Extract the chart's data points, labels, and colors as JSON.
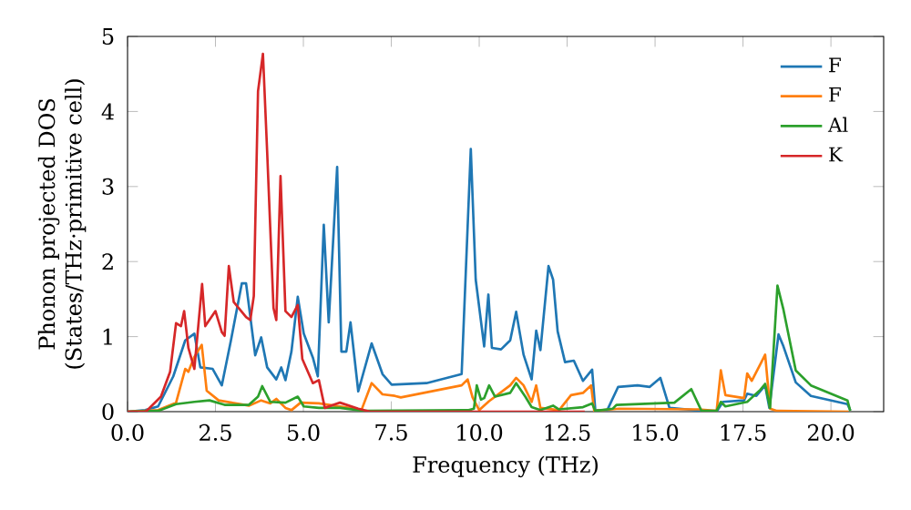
{
  "chart_data": {
    "type": "line",
    "xlabel": "Frequency (THz)",
    "ylabel": "Phonon projected DOS\n(States/THz·primitive cell)",
    "xlim": [
      0,
      21.5
    ],
    "ylim": [
      0,
      5
    ],
    "xticks": [
      {
        "value": 0,
        "label": "0.0"
      },
      {
        "value": 2.5,
        "label": "2.5"
      },
      {
        "value": 5,
        "label": "5.0"
      },
      {
        "value": 7.5,
        "label": "7.5"
      },
      {
        "value": 10,
        "label": "10.0"
      },
      {
        "value": 12.5,
        "label": "12.5"
      },
      {
        "value": 15,
        "label": "15.0"
      },
      {
        "value": 17.5,
        "label": "17.5"
      },
      {
        "value": 20,
        "label": "20.0"
      }
    ],
    "yticks": [
      0,
      1,
      2,
      3,
      4,
      5
    ],
    "legend": "top right",
    "marker": "none",
    "line_style": "solid",
    "grid": false,
    "series": [
      {
        "name": "F",
        "color": "#1f77b4",
        "x": [
          0,
          0.5,
          0.87,
          1.3,
          1.64,
          1.9,
          2.07,
          2.42,
          2.68,
          2.94,
          3.25,
          3.37,
          3.63,
          3.8,
          3.97,
          4.23,
          4.37,
          4.49,
          4.66,
          4.84,
          5.01,
          5.27,
          5.41,
          5.58,
          5.72,
          5.96,
          6.08,
          6.22,
          6.34,
          6.56,
          6.94,
          7.25,
          7.51,
          8.5,
          9.5,
          9.76,
          9.9,
          10.14,
          10.26,
          10.36,
          10.62,
          10.88,
          11.05,
          11.26,
          11.49,
          11.62,
          11.74,
          11.97,
          12.1,
          12.23,
          12.44,
          12.69,
          12.95,
          13.21,
          13.3,
          13.64,
          13.95,
          14.5,
          14.85,
          15.15,
          15.41,
          15.9,
          16.32,
          16.75,
          16.93,
          17.53,
          17.62,
          17.88,
          18.13,
          18.25,
          18.51,
          18.65,
          19.0,
          19.43,
          20.47,
          20.55
        ],
        "values": [
          0,
          0.02,
          0.07,
          0.47,
          0.95,
          1.04,
          0.59,
          0.57,
          0.35,
          0.95,
          1.71,
          1.71,
          0.75,
          0.99,
          0.59,
          0.43,
          0.59,
          0.42,
          0.8,
          1.53,
          1.04,
          0.72,
          0.47,
          2.49,
          1.19,
          3.26,
          0.8,
          0.8,
          1.19,
          0.27,
          0.91,
          0.5,
          0.36,
          0.38,
          0.5,
          3.5,
          1.76,
          0.87,
          1.56,
          0.85,
          0.83,
          0.95,
          1.33,
          0.76,
          0.43,
          1.08,
          0.82,
          1.94,
          1.76,
          1.07,
          0.66,
          0.68,
          0.41,
          0.56,
          0.02,
          0.02,
          0.33,
          0.35,
          0.33,
          0.45,
          0.05,
          0.03,
          0.01,
          0,
          0.13,
          0.15,
          0.24,
          0.21,
          0.35,
          0.05,
          1.03,
          0.87,
          0.39,
          0.21,
          0.1,
          0.02
        ]
      },
      {
        "name": "F",
        "color": "#ff7f0e",
        "x": [
          0,
          0.87,
          1.38,
          1.64,
          1.73,
          1.9,
          2.11,
          2.25,
          2.59,
          3.45,
          3.8,
          4.06,
          4.23,
          4.49,
          4.66,
          4.92,
          5.44,
          6.3,
          6.65,
          6.94,
          7.25,
          7.6,
          7.77,
          9.5,
          9.67,
          9.81,
          10.0,
          10.28,
          10.88,
          11.05,
          11.26,
          11.49,
          11.62,
          11.74,
          12.27,
          12.61,
          12.95,
          13.18,
          13.27,
          13.98,
          16.23,
          16.75,
          16.87,
          17.0,
          17.53,
          17.62,
          17.75,
          17.99,
          18.13,
          18.27,
          18.47,
          20.5
        ],
        "values": [
          0,
          0.02,
          0.12,
          0.57,
          0.53,
          0.73,
          0.89,
          0.28,
          0.15,
          0.08,
          0.15,
          0.11,
          0.17,
          0.05,
          0.02,
          0.12,
          0.11,
          0.05,
          0.02,
          0.38,
          0.23,
          0.21,
          0.19,
          0.35,
          0.43,
          0.19,
          0.02,
          0.14,
          0.35,
          0.45,
          0.35,
          0.13,
          0.35,
          0.05,
          0.02,
          0.22,
          0.25,
          0.35,
          0.01,
          0.04,
          0.03,
          0.01,
          0.55,
          0.22,
          0.18,
          0.51,
          0.41,
          0.63,
          0.76,
          0.04,
          0.01,
          0
        ]
      },
      {
        "name": "Al",
        "color": "#2ca02c",
        "x": [
          0,
          0.87,
          1.38,
          1.9,
          2.33,
          2.76,
          3.45,
          3.71,
          3.83,
          4.06,
          4.49,
          4.84,
          5.01,
          5.44,
          6.04,
          6.73,
          9.7,
          9.85,
          9.93,
          10.05,
          10.14,
          10.28,
          10.45,
          10.88,
          11.05,
          11.31,
          11.49,
          11.74,
          12.1,
          12.27,
          12.95,
          13.21,
          13.3,
          13.8,
          13.9,
          15.55,
          16.03,
          16.32,
          16.75,
          16.87,
          17.0,
          17.62,
          17.99,
          18.13,
          18.27,
          18.48,
          18.65,
          19.0,
          19.43,
          20.47,
          20.55
        ],
        "values": [
          0,
          0.01,
          0.1,
          0.13,
          0.15,
          0.09,
          0.09,
          0.2,
          0.34,
          0.13,
          0.12,
          0.2,
          0.07,
          0.05,
          0.05,
          0.01,
          0.02,
          0.04,
          0.35,
          0.16,
          0.18,
          0.35,
          0.2,
          0.25,
          0.38,
          0.2,
          0.06,
          0.02,
          0.08,
          0.03,
          0.06,
          0.11,
          0.01,
          0.04,
          0.09,
          0.12,
          0.3,
          0.01,
          0.01,
          0.13,
          0.07,
          0.13,
          0.29,
          0.37,
          0.05,
          1.68,
          1.36,
          0.55,
          0.35,
          0.15,
          0.01
        ]
      },
      {
        "name": "K",
        "color": "#d62728",
        "x": [
          0,
          0.52,
          0.95,
          1.21,
          1.38,
          1.52,
          1.61,
          1.73,
          1.9,
          2.12,
          2.21,
          2.5,
          2.68,
          2.76,
          2.88,
          3.02,
          3.37,
          3.49,
          3.59,
          3.71,
          3.85,
          3.97,
          4.15,
          4.23,
          4.35,
          4.49,
          4.66,
          4.84,
          4.97,
          5.27,
          5.44,
          5.61,
          6.04,
          6.56,
          6.9,
          13.0
        ],
        "values": [
          0,
          0,
          0.2,
          0.53,
          1.18,
          1.14,
          1.34,
          0.85,
          0.57,
          1.7,
          1.14,
          1.34,
          1.06,
          1.01,
          1.94,
          1.46,
          1.26,
          1.22,
          1.54,
          4.27,
          4.77,
          3.46,
          1.38,
          1.22,
          3.14,
          1.34,
          1.26,
          1.42,
          0.7,
          0.38,
          0.42,
          0.05,
          0.12,
          0.04,
          0,
          0
        ]
      }
    ]
  }
}
